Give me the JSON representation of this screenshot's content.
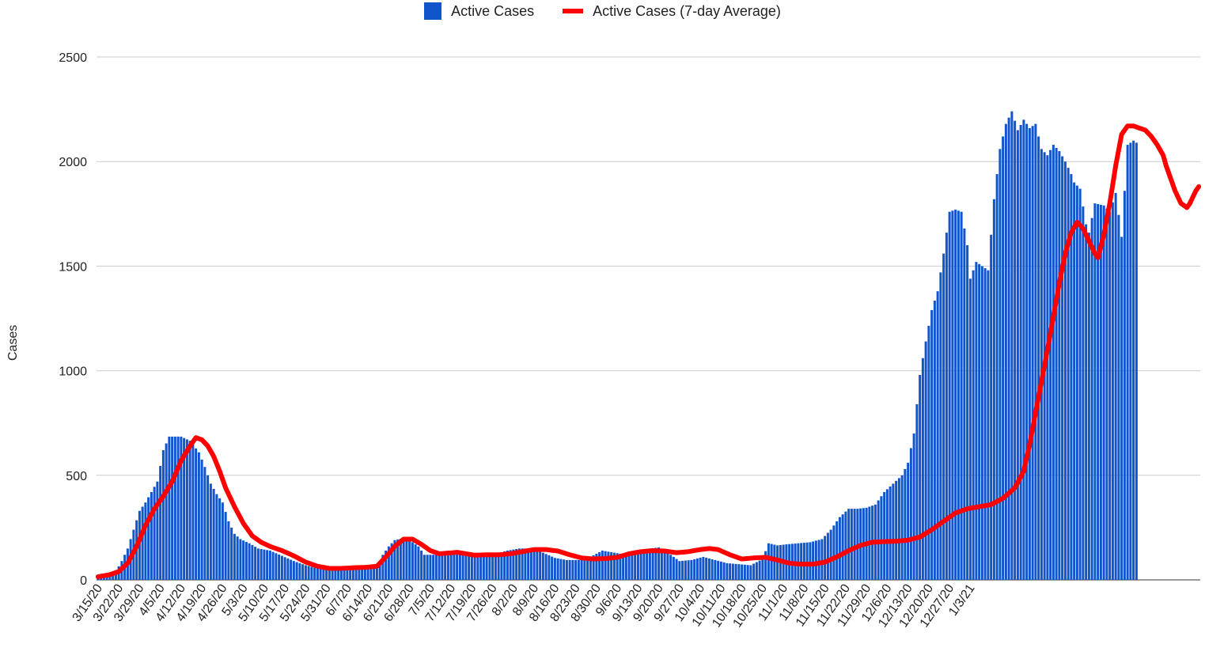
{
  "chart_data": {
    "type": "bar",
    "title": "",
    "xlabel": "",
    "ylabel": "Cases",
    "ylim": [
      0,
      2500
    ],
    "yticks": [
      0,
      500,
      1000,
      1500,
      2000,
      2500
    ],
    "grid": true,
    "legend_position": "top",
    "colors": {
      "bars": "#1155cc",
      "line": "#ff0000",
      "grid": "#cccccc"
    },
    "x_tick_labels": [
      "3/15/20",
      "3/22/20",
      "3/29/20",
      "4/5/20",
      "4/12/20",
      "4/19/20",
      "4/26/20",
      "5/3/20",
      "5/10/20",
      "5/17/20",
      "5/24/20",
      "5/31/20",
      "6/7/20",
      "6/14/20",
      "6/21/20",
      "6/28/20",
      "7/5/20",
      "7/12/20",
      "7/19/20",
      "7/26/20",
      "8/2/20",
      "8/9/20",
      "8/16/20",
      "8/23/20",
      "8/30/20",
      "9/6/20",
      "9/13/20",
      "9/20/20",
      "9/27/20",
      "10/4/20",
      "10/11/20",
      "10/18/20",
      "10/25/20",
      "11/1/20",
      "11/8/20",
      "11/15/20",
      "11/22/20",
      "11/29/20",
      "12/6/20",
      "12/13/20",
      "12/20/20",
      "12/27/20",
      "1/3/21"
    ],
    "series": [
      {
        "name": "Active Cases",
        "type": "bar",
        "anchors": [
          [
            0,
            12
          ],
          [
            3,
            20
          ],
          [
            6,
            40
          ],
          [
            8,
            90
          ],
          [
            10,
            150
          ],
          [
            12,
            240
          ],
          [
            14,
            330
          ],
          [
            16,
            370
          ],
          [
            18,
            420
          ],
          [
            20,
            470
          ],
          [
            22,
            620
          ],
          [
            24,
            685
          ],
          [
            28,
            685
          ],
          [
            31,
            665
          ],
          [
            34,
            610
          ],
          [
            36,
            540
          ],
          [
            38,
            460
          ],
          [
            40,
            410
          ],
          [
            42,
            370
          ],
          [
            44,
            280
          ],
          [
            46,
            220
          ],
          [
            48,
            195
          ],
          [
            51,
            175
          ],
          [
            54,
            150
          ],
          [
            58,
            140
          ],
          [
            62,
            115
          ],
          [
            66,
            90
          ],
          [
            70,
            70
          ],
          [
            74,
            55
          ],
          [
            78,
            50
          ],
          [
            82,
            48
          ],
          [
            86,
            50
          ],
          [
            90,
            55
          ],
          [
            94,
            60
          ],
          [
            96,
            120
          ],
          [
            98,
            160
          ],
          [
            100,
            190
          ],
          [
            103,
            200
          ],
          [
            106,
            180
          ],
          [
            108,
            160
          ],
          [
            110,
            120
          ],
          [
            114,
            120
          ],
          [
            118,
            140
          ],
          [
            122,
            125
          ],
          [
            126,
            110
          ],
          [
            130,
            115
          ],
          [
            134,
            125
          ],
          [
            138,
            140
          ],
          [
            142,
            150
          ],
          [
            146,
            150
          ],
          [
            150,
            130
          ],
          [
            154,
            105
          ],
          [
            158,
            95
          ],
          [
            162,
            95
          ],
          [
            166,
            110
          ],
          [
            170,
            140
          ],
          [
            174,
            130
          ],
          [
            178,
            120
          ],
          [
            182,
            125
          ],
          [
            186,
            150
          ],
          [
            189,
            155
          ],
          [
            192,
            130
          ],
          [
            196,
            90
          ],
          [
            200,
            95
          ],
          [
            204,
            110
          ],
          [
            208,
            95
          ],
          [
            212,
            80
          ],
          [
            216,
            75
          ],
          [
            220,
            70
          ],
          [
            224,
            100
          ],
          [
            226,
            175
          ],
          [
            229,
            165
          ],
          [
            232,
            170
          ],
          [
            236,
            175
          ],
          [
            240,
            180
          ],
          [
            244,
            195
          ],
          [
            247,
            240
          ],
          [
            250,
            300
          ],
          [
            253,
            340
          ],
          [
            256,
            340
          ],
          [
            259,
            345
          ],
          [
            262,
            360
          ],
          [
            265,
            420
          ],
          [
            268,
            460
          ],
          [
            271,
            500
          ],
          [
            273,
            560
          ],
          [
            275,
            700
          ],
          [
            277,
            980
          ],
          [
            279,
            1140
          ],
          [
            281,
            1290
          ],
          [
            283,
            1380
          ],
          [
            285,
            1560
          ],
          [
            287,
            1760
          ],
          [
            289,
            1770
          ],
          [
            291,
            1760
          ],
          [
            293,
            1600
          ],
          [
            294,
            1440
          ],
          [
            296,
            1520
          ],
          [
            298,
            1500
          ],
          [
            300,
            1480
          ],
          [
            302,
            1820
          ],
          [
            304,
            2060
          ],
          [
            306,
            2180
          ],
          [
            308,
            2240
          ],
          [
            310,
            2150
          ],
          [
            312,
            2200
          ],
          [
            314,
            2160
          ],
          [
            316,
            2180
          ],
          [
            318,
            2060
          ],
          [
            320,
            2030
          ],
          [
            322,
            2080
          ],
          [
            324,
            2050
          ],
          [
            326,
            2000
          ],
          [
            328,
            1940
          ],
          [
            329,
            1900
          ],
          [
            331,
            1870
          ],
          [
            333,
            1700
          ],
          [
            334,
            1660
          ],
          [
            336,
            1800
          ],
          [
            339,
            1790
          ],
          [
            341,
            1760
          ],
          [
            343,
            1850
          ],
          [
            345,
            1640
          ],
          [
            347,
            2080
          ],
          [
            349,
            2100
          ],
          [
            350,
            2090
          ]
        ]
      },
      {
        "name": "Active Cases (7-day Average)",
        "type": "line",
        "anchors": [
          [
            0,
            15
          ],
          [
            4,
            25
          ],
          [
            7,
            40
          ],
          [
            10,
            80
          ],
          [
            13,
            160
          ],
          [
            16,
            260
          ],
          [
            19,
            340
          ],
          [
            22,
            400
          ],
          [
            25,
            470
          ],
          [
            28,
            570
          ],
          [
            31,
            640
          ],
          [
            33,
            680
          ],
          [
            35,
            670
          ],
          [
            37,
            640
          ],
          [
            39,
            590
          ],
          [
            41,
            520
          ],
          [
            43,
            440
          ],
          [
            46,
            350
          ],
          [
            49,
            270
          ],
          [
            52,
            210
          ],
          [
            55,
            180
          ],
          [
            58,
            160
          ],
          [
            62,
            140
          ],
          [
            66,
            115
          ],
          [
            70,
            85
          ],
          [
            74,
            65
          ],
          [
            78,
            55
          ],
          [
            82,
            55
          ],
          [
            86,
            58
          ],
          [
            90,
            60
          ],
          [
            94,
            65
          ],
          [
            97,
            110
          ],
          [
            100,
            160
          ],
          [
            103,
            195
          ],
          [
            106,
            195
          ],
          [
            109,
            170
          ],
          [
            112,
            140
          ],
          [
            115,
            125
          ],
          [
            118,
            128
          ],
          [
            121,
            132
          ],
          [
            124,
            125
          ],
          [
            127,
            118
          ],
          [
            131,
            120
          ],
          [
            135,
            120
          ],
          [
            139,
            125
          ],
          [
            143,
            135
          ],
          [
            147,
            145
          ],
          [
            151,
            145
          ],
          [
            155,
            138
          ],
          [
            159,
            120
          ],
          [
            163,
            105
          ],
          [
            167,
            100
          ],
          [
            171,
            102
          ],
          [
            175,
            108
          ],
          [
            179,
            125
          ],
          [
            183,
            135
          ],
          [
            187,
            140
          ],
          [
            191,
            138
          ],
          [
            195,
            130
          ],
          [
            199,
            135
          ],
          [
            203,
            145
          ],
          [
            206,
            150
          ],
          [
            209,
            145
          ],
          [
            213,
            120
          ],
          [
            217,
            100
          ],
          [
            221,
            105
          ],
          [
            225,
            108
          ],
          [
            229,
            95
          ],
          [
            233,
            80
          ],
          [
            237,
            75
          ],
          [
            241,
            75
          ],
          [
            245,
            85
          ],
          [
            249,
            110
          ],
          [
            253,
            140
          ],
          [
            257,
            165
          ],
          [
            261,
            180
          ],
          [
            265,
            183
          ],
          [
            269,
            185
          ],
          [
            273,
            190
          ],
          [
            277,
            205
          ],
          [
            281,
            240
          ],
          [
            285,
            280
          ],
          [
            289,
            320
          ],
          [
            293,
            340
          ],
          [
            297,
            350
          ],
          [
            301,
            360
          ],
          [
            305,
            390
          ],
          [
            309,
            440
          ],
          [
            312,
            520
          ],
          [
            314,
            650
          ],
          [
            316,
            800
          ],
          [
            318,
            950
          ],
          [
            320,
            1100
          ],
          [
            322,
            1260
          ],
          [
            324,
            1420
          ],
          [
            326,
            1560
          ],
          [
            328,
            1660
          ],
          [
            330,
            1710
          ],
          [
            332,
            1680
          ],
          [
            334,
            1620
          ],
          [
            336,
            1560
          ],
          [
            337,
            1540
          ],
          [
            339,
            1650
          ],
          [
            341,
            1800
          ],
          [
            343,
            1980
          ],
          [
            345,
            2130
          ],
          [
            347,
            2170
          ],
          [
            349,
            2170
          ],
          [
            351,
            2160
          ],
          [
            353,
            2150
          ],
          [
            355,
            2120
          ],
          [
            357,
            2080
          ],
          [
            359,
            2030
          ],
          [
            360,
            1980
          ],
          [
            361,
            1940
          ],
          [
            363,
            1860
          ],
          [
            365,
            1800
          ],
          [
            367,
            1780
          ],
          [
            368,
            1800
          ],
          [
            370,
            1860
          ],
          [
            371,
            1880
          ]
        ]
      }
    ]
  }
}
